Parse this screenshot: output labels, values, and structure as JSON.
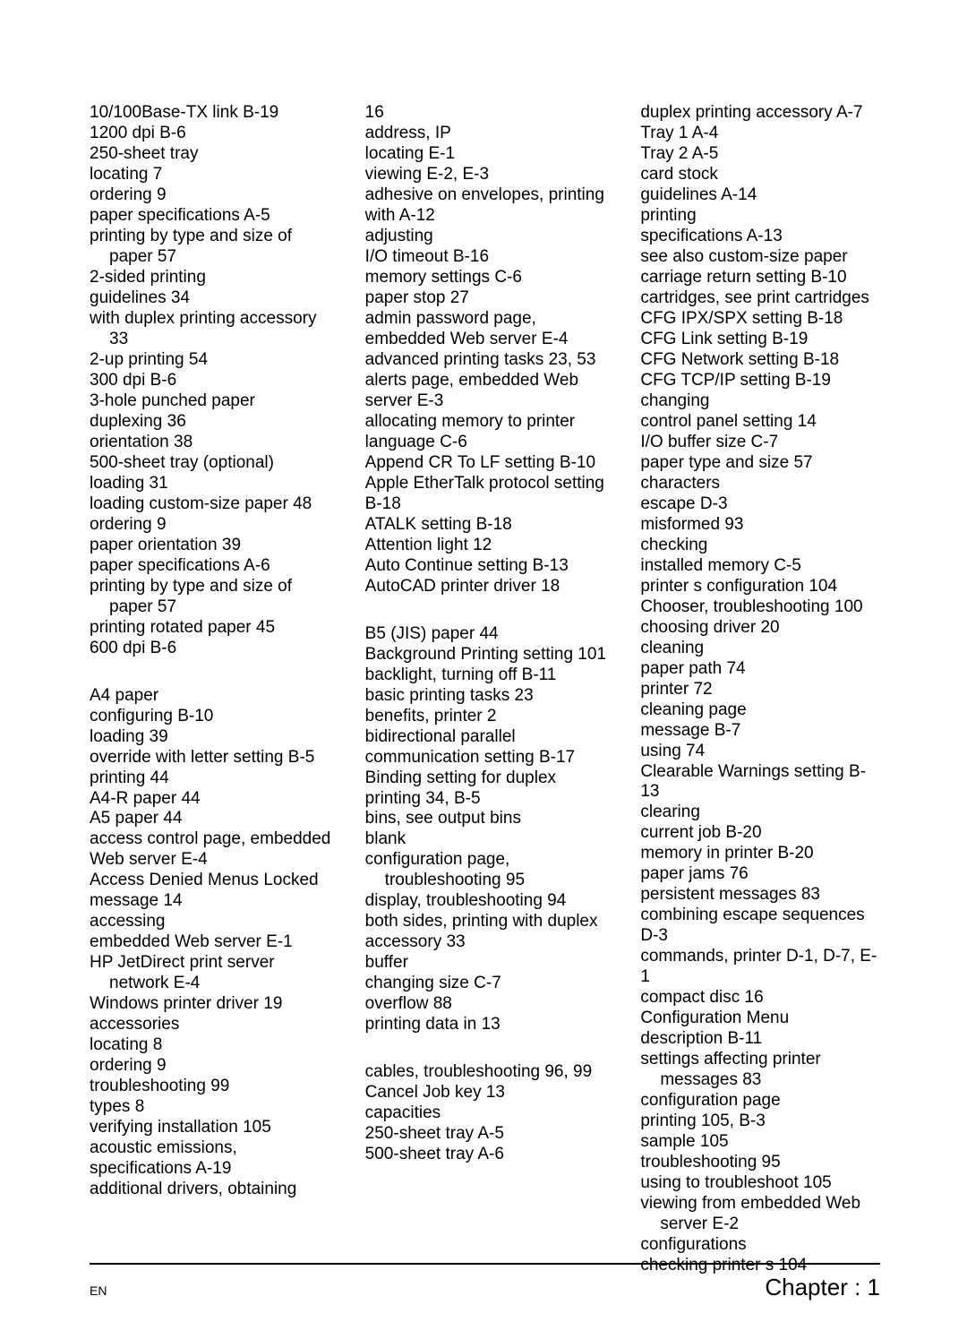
{
  "col1": [
    {
      "t": "10/100Base-TX link   B-19",
      "c": "entry"
    },
    {
      "t": "1200 dpi   B-6",
      "c": "entry"
    },
    {
      "t": "250-sheet tray",
      "c": "entry"
    },
    {
      "t": "locating   7",
      "c": "sub1"
    },
    {
      "t": "ordering   9",
      "c": "sub1"
    },
    {
      "t": "paper specifications   A-5",
      "c": "sub1"
    },
    {
      "t": "printing by type and size of paper   57",
      "c": "sub1"
    },
    {
      "t": "2-sided printing",
      "c": "entry"
    },
    {
      "t": "guidelines   34",
      "c": "sub1"
    },
    {
      "t": "with duplex printing accessory   33",
      "c": "sub1"
    },
    {
      "t": "2-up printing   54",
      "c": "entry"
    },
    {
      "t": "300 dpi   B-6",
      "c": "entry"
    },
    {
      "t": "3-hole punched paper",
      "c": "entry"
    },
    {
      "t": "duplexing   36",
      "c": "sub1"
    },
    {
      "t": "orientation   38",
      "c": "sub1"
    },
    {
      "t": "500-sheet tray (optional)",
      "c": "entry"
    },
    {
      "t": "loading   31",
      "c": "sub1"
    },
    {
      "t": "loading custom-size paper   48",
      "c": "sub1"
    },
    {
      "t": "ordering   9",
      "c": "sub1"
    },
    {
      "t": "paper orientation   39",
      "c": "sub1"
    },
    {
      "t": "paper specifications   A-6",
      "c": "sub1"
    },
    {
      "t": "printing by type and size of paper   57",
      "c": "sub1"
    },
    {
      "t": "printing rotated paper   45",
      "c": "sub1"
    },
    {
      "t": "600 dpi   B-6",
      "c": "entry"
    },
    {
      "t": "",
      "c": "gap"
    },
    {
      "t": "A4 paper",
      "c": "entry"
    },
    {
      "t": "configuring   B-10",
      "c": "sub1"
    },
    {
      "t": "loading   39",
      "c": "sub1"
    },
    {
      "t": "override with letter setting   B-5",
      "c": "sub1"
    },
    {
      "t": "printing   44",
      "c": "sub1"
    },
    {
      "t": "A4-R paper   44",
      "c": "entry"
    },
    {
      "t": "A5 paper   44",
      "c": "entry"
    },
    {
      "t": "access control page, embedded Web server   E-4",
      "c": "entry"
    },
    {
      "t": "Access Denied Menus Locked message   14",
      "c": "entry"
    },
    {
      "t": "accessing",
      "c": "entry"
    },
    {
      "t": "embedded Web server   E-1",
      "c": "sub1"
    },
    {
      "t": "HP JetDirect print server network   E-4",
      "c": "sub1"
    },
    {
      "t": "Windows printer driver   19",
      "c": "sub1"
    },
    {
      "t": "accessories",
      "c": "entry"
    },
    {
      "t": "locating   8",
      "c": "sub1"
    },
    {
      "t": "ordering   9",
      "c": "sub1"
    },
    {
      "t": "troubleshooting   99",
      "c": "sub1"
    },
    {
      "t": "types   8",
      "c": "sub1"
    },
    {
      "t": "verifying installation   105",
      "c": "sub1"
    },
    {
      "t": "acoustic emissions, specifications   A-19",
      "c": "entry"
    },
    {
      "t": "additional drivers, obtaining",
      "c": "entry"
    }
  ],
  "col2": [
    {
      "t": "16",
      "c": "sub2"
    },
    {
      "t": "address, IP",
      "c": "entry"
    },
    {
      "t": "locating   E-1",
      "c": "sub1"
    },
    {
      "t": "viewing   E-2,  E-3",
      "c": "sub1"
    },
    {
      "t": "adhesive on envelopes, printing with   A-12",
      "c": "entry"
    },
    {
      "t": "adjusting",
      "c": "entry"
    },
    {
      "t": "I/O timeout   B-16",
      "c": "sub1"
    },
    {
      "t": "memory settings   C-6",
      "c": "sub1"
    },
    {
      "t": "paper stop   27",
      "c": "sub1"
    },
    {
      "t": "admin password page, embedded Web server   E-4",
      "c": "entry"
    },
    {
      "t": "advanced printing tasks   23,   53",
      "c": "entry"
    },
    {
      "t": "alerts page, embedded Web server   E-3",
      "c": "entry"
    },
    {
      "t": "allocating memory to printer language   C-6",
      "c": "entry"
    },
    {
      "t": "Append CR To LF setting   B-10",
      "c": "entry"
    },
    {
      "t": "Apple EtherTalk protocol setting   B-18",
      "c": "entry"
    },
    {
      "t": "ATALK setting   B-18",
      "c": "entry"
    },
    {
      "t": "Attention light   12",
      "c": "entry"
    },
    {
      "t": "Auto Continue setting   B-13",
      "c": "entry"
    },
    {
      "t": "AutoCAD printer driver   18",
      "c": "entry"
    },
    {
      "t": "",
      "c": "gap"
    },
    {
      "t": "B5 (JIS) paper   44",
      "c": "entry"
    },
    {
      "t": "Background Printing setting   101",
      "c": "entry"
    },
    {
      "t": "backlight, turning off   B-11",
      "c": "entry"
    },
    {
      "t": "basic printing tasks   23",
      "c": "entry"
    },
    {
      "t": "benefits, printer   2",
      "c": "entry"
    },
    {
      "t": "bidirectional parallel communication setting   B-17",
      "c": "entry"
    },
    {
      "t": "Binding setting for duplex printing   34,  B-5",
      "c": "entry"
    },
    {
      "t": "bins, see output bins",
      "c": "entry"
    },
    {
      "t": "blank",
      "c": "entry"
    },
    {
      "t": "configuration page, troubleshooting   95",
      "c": "sub1"
    },
    {
      "t": "display, troubleshooting   94",
      "c": "sub1"
    },
    {
      "t": "both sides, printing with duplex accessory   33",
      "c": "entry"
    },
    {
      "t": "buffer",
      "c": "entry"
    },
    {
      "t": "changing size   C-7",
      "c": "sub1"
    },
    {
      "t": "overflow   88",
      "c": "sub1"
    },
    {
      "t": "printing data in   13",
      "c": "sub1"
    },
    {
      "t": "",
      "c": "gap"
    },
    {
      "t": "cables, troubleshooting   96,   99",
      "c": "entry"
    },
    {
      "t": "Cancel Job key   13",
      "c": "entry"
    },
    {
      "t": "capacities",
      "c": "entry"
    },
    {
      "t": "250-sheet tray   A-5",
      "c": "sub1"
    },
    {
      "t": "500-sheet tray   A-6",
      "c": "sub1"
    }
  ],
  "col3": [
    {
      "t": "duplex printing accessory   A-7",
      "c": "sub1"
    },
    {
      "t": "Tray 1   A-4",
      "c": "sub1"
    },
    {
      "t": "Tray 2   A-5",
      "c": "sub1"
    },
    {
      "t": "card stock",
      "c": "entry"
    },
    {
      "t": "guidelines   A-14",
      "c": "sub1"
    },
    {
      "t": "printing",
      "c": "sub1"
    },
    {
      "t": "specifications   A-13",
      "c": "sub1"
    },
    {
      "t": "see also custom-size paper",
      "c": "sub1"
    },
    {
      "t": "carriage return setting   B-10",
      "c": "entry"
    },
    {
      "t": "cartridges, see print cartridges",
      "c": "entry"
    },
    {
      "t": "CFG IPX/SPX setting   B-18",
      "c": "entry"
    },
    {
      "t": "CFG Link setting   B-19",
      "c": "entry"
    },
    {
      "t": "CFG Network setting   B-18",
      "c": "entry"
    },
    {
      "t": "CFG TCP/IP setting   B-19",
      "c": "entry"
    },
    {
      "t": "changing",
      "c": "entry"
    },
    {
      "t": "control panel setting   14",
      "c": "sub1"
    },
    {
      "t": "I/O buffer size   C-7",
      "c": "sub1"
    },
    {
      "t": "paper type and size   57",
      "c": "sub1"
    },
    {
      "t": "characters",
      "c": "entry"
    },
    {
      "t": "escape   D-3",
      "c": "sub1"
    },
    {
      "t": "misformed   93",
      "c": "sub1"
    },
    {
      "t": "checking",
      "c": "entry"
    },
    {
      "t": "installed memory   C-5",
      "c": "sub1"
    },
    {
      "t": "printer s configuration   104",
      "c": "sub1"
    },
    {
      "t": "Chooser, troubleshooting   100",
      "c": "entry"
    },
    {
      "t": "choosing driver   20",
      "c": "entry"
    },
    {
      "t": "cleaning",
      "c": "entry"
    },
    {
      "t": "paper path   74",
      "c": "sub1"
    },
    {
      "t": "printer   72",
      "c": "sub1"
    },
    {
      "t": "cleaning page",
      "c": "entry"
    },
    {
      "t": "message   B-7",
      "c": "sub1"
    },
    {
      "t": "using   74",
      "c": "sub1"
    },
    {
      "t": "Clearable Warnings setting   B-13",
      "c": "entry"
    },
    {
      "t": "clearing",
      "c": "entry"
    },
    {
      "t": "current job   B-20",
      "c": "sub1"
    },
    {
      "t": "memory in printer   B-20",
      "c": "sub1"
    },
    {
      "t": "paper jams   76",
      "c": "sub1"
    },
    {
      "t": "persistent messages   83",
      "c": "sub1"
    },
    {
      "t": "combining escape sequences   D-3",
      "c": "entry"
    },
    {
      "t": "commands, printer   D-1,  D-7,   E-1",
      "c": "entry"
    },
    {
      "t": "compact disc   16",
      "c": "entry"
    },
    {
      "t": "Configuration Menu",
      "c": "entry"
    },
    {
      "t": "description   B-11",
      "c": "sub1"
    },
    {
      "t": "settings affecting printer messages   83",
      "c": "sub1"
    },
    {
      "t": "configuration page",
      "c": "entry"
    },
    {
      "t": "printing   105,  B-3",
      "c": "sub1"
    },
    {
      "t": "sample   105",
      "c": "sub1"
    },
    {
      "t": "troubleshooting   95",
      "c": "sub1"
    },
    {
      "t": "using to troubleshoot   105",
      "c": "sub1"
    },
    {
      "t": "viewing from embedded Web server   E-2",
      "c": "sub1"
    },
    {
      "t": "configurations",
      "c": "entry"
    },
    {
      "t": "checking printer s   104",
      "c": "sub1"
    }
  ],
  "footer": {
    "left": "EN",
    "right": "Chapter :    1"
  }
}
